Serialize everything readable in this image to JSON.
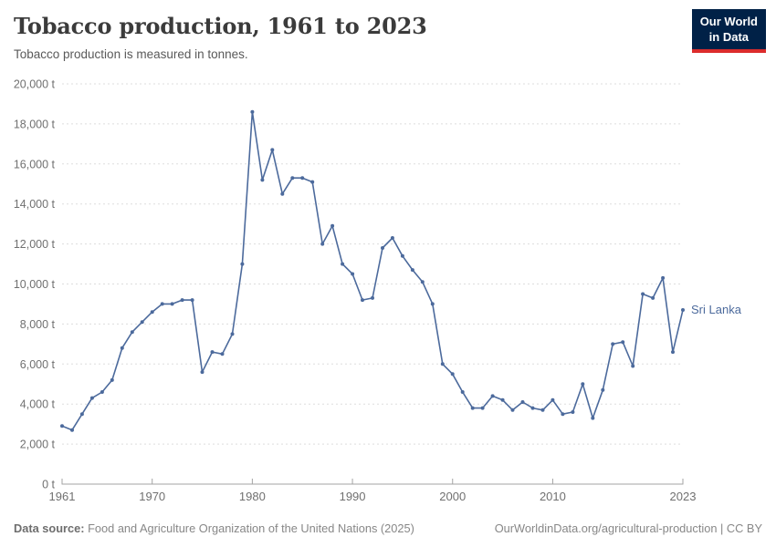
{
  "header": {
    "title": "Tobacco production, 1961 to 2023",
    "subtitle": "Tobacco production is measured in tonnes.",
    "logo": {
      "line1": "Our World",
      "line2": "in Data"
    }
  },
  "chart_data": {
    "type": "line",
    "title": "Tobacco production, 1961 to 2023",
    "ylabel": "Tobacco production (tonnes)",
    "unit": "t",
    "xlim": [
      1961,
      2023
    ],
    "ylim": [
      0,
      20000
    ],
    "x_ticks": [
      1961,
      1970,
      1980,
      1990,
      2000,
      2010,
      2023
    ],
    "y_ticks": [
      0,
      2000,
      4000,
      6000,
      8000,
      10000,
      12000,
      14000,
      16000,
      18000,
      20000
    ],
    "grid": "horizontal-dashed",
    "legend_position": "end-of-line-label",
    "series": [
      {
        "name": "Sri Lanka",
        "color": "#4c6a9c",
        "x": [
          1961,
          1962,
          1963,
          1964,
          1965,
          1966,
          1967,
          1968,
          1969,
          1970,
          1971,
          1972,
          1973,
          1974,
          1975,
          1976,
          1977,
          1978,
          1979,
          1980,
          1981,
          1982,
          1983,
          1984,
          1985,
          1986,
          1987,
          1988,
          1989,
          1990,
          1991,
          1992,
          1993,
          1994,
          1995,
          1996,
          1997,
          1998,
          1999,
          2000,
          2001,
          2002,
          2003,
          2004,
          2005,
          2006,
          2007,
          2008,
          2009,
          2010,
          2011,
          2012,
          2013,
          2014,
          2015,
          2016,
          2017,
          2018,
          2019,
          2020,
          2021,
          2022,
          2023
        ],
        "values": [
          2900,
          2700,
          3500,
          4300,
          4600,
          5200,
          6800,
          7600,
          8100,
          8600,
          9000,
          9000,
          9200,
          9200,
          5600,
          6600,
          6500,
          7500,
          11000,
          18600,
          15200,
          16700,
          14500,
          15300,
          15300,
          15100,
          12000,
          12900,
          11000,
          10500,
          9200,
          9300,
          11800,
          12300,
          11400,
          10700,
          10100,
          9000,
          6000,
          5500,
          4600,
          3800,
          3800,
          4400,
          4200,
          3700,
          4100,
          3800,
          3700,
          4200,
          3500,
          3600,
          5000,
          3300,
          4700,
          7000,
          7100,
          5900,
          9500,
          9300,
          10300,
          6600,
          8700
        ]
      }
    ]
  },
  "footer": {
    "source_label": "Data source:",
    "source_text": "Food and Agriculture Organization of the United Nations (2025)",
    "credit": "OurWorldinData.org/agricultural-production | CC BY"
  },
  "colors": {
    "line": "#4c6a9c",
    "grid": "#dddddd",
    "axis": "#a3a3a3",
    "tick_label": "#707070",
    "logo_bg": "#002147",
    "logo_stripe": "#dc2c2c"
  }
}
